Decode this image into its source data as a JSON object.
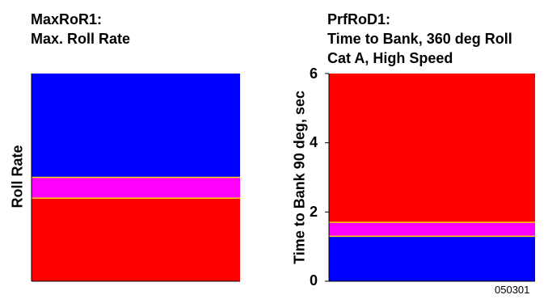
{
  "chart_data": [
    {
      "id": "left",
      "type": "bar",
      "title_lines": [
        "MaxRoR1:",
        "Max. Roll Rate"
      ],
      "xlabel": "",
      "ylabel": "Roll Rate",
      "ylim": [
        0,
        1
      ],
      "ticks": [],
      "bands": [
        {
          "name": "",
          "from": 0.0,
          "to": 0.4,
          "color": "#ff0000"
        },
        {
          "name": "",
          "from": 0.4,
          "to": 0.5,
          "color": "#ff00ff"
        },
        {
          "name": "",
          "from": 0.5,
          "to": 1.0,
          "color": "#0000ff"
        }
      ],
      "boundary_color": "#ffd700",
      "grid": false
    },
    {
      "id": "right",
      "type": "bar",
      "title_lines": [
        "PrfRoD1:",
        "Time to Bank, 360 deg Roll",
        "Cat A, High Speed"
      ],
      "xlabel": "",
      "ylabel": "Time to Bank 90 deg, sec",
      "ylim": [
        0,
        6
      ],
      "ticks": [
        "0",
        "2",
        "4",
        "6"
      ],
      "bands": [
        {
          "name": "",
          "from": 0.0,
          "to": 1.3,
          "color": "#0000ff"
        },
        {
          "name": "",
          "from": 1.3,
          "to": 1.7,
          "color": "#ff00ff"
        },
        {
          "name": "",
          "from": 1.7,
          "to": 6.0,
          "color": "#ff0000"
        }
      ],
      "boundary_color": "#ffd700",
      "grid": false
    }
  ],
  "footer_code": "050301"
}
